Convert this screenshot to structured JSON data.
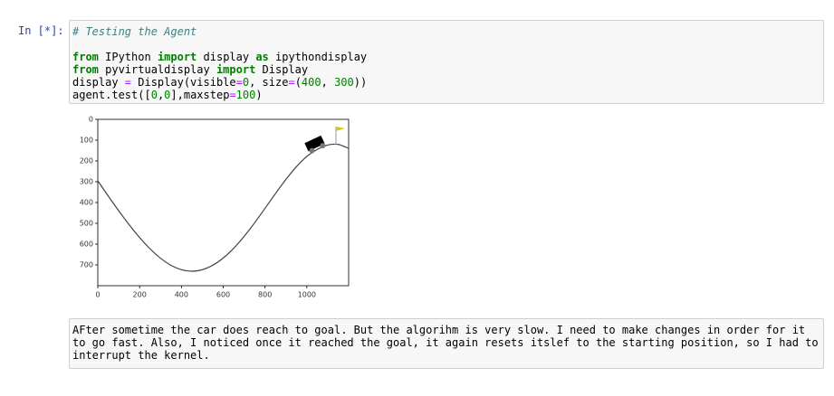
{
  "prompt": "In [*]:",
  "code": {
    "lines": [
      [
        "# Testing the Agent"
      ],
      [
        "from",
        " IPython ",
        "import",
        " display ",
        "as",
        " ipythondisplay"
      ],
      [
        "from",
        " pyvirtualdisplay ",
        "import",
        " Display"
      ],
      [
        "display ",
        "=",
        " Display(visible",
        "=",
        "0",
        ", size",
        "=",
        "(",
        "400",
        ", ",
        "300",
        "))"
      ],
      [
        "agent.test([",
        "0",
        ",",
        "0",
        "],maxstep",
        "=",
        "100",
        ")"
      ]
    ]
  },
  "output": {
    "xticks": [
      0,
      200,
      400,
      600,
      800,
      1000
    ],
    "yticks": [
      0,
      100,
      200,
      300,
      400,
      500,
      600,
      700
    ],
    "xlim": [
      0,
      1200
    ],
    "ylim": [
      0,
      800
    ]
  },
  "markdown": {
    "lines": [
      "AFter sometime the car does reach to goal. But the algorihm is very slow. I need to make changes in order for it",
      "to go fast. Also, I noticed once it reached the goal, it again resets itslef to the starting position, so I had to",
      "interrupt the kernel."
    ]
  }
}
